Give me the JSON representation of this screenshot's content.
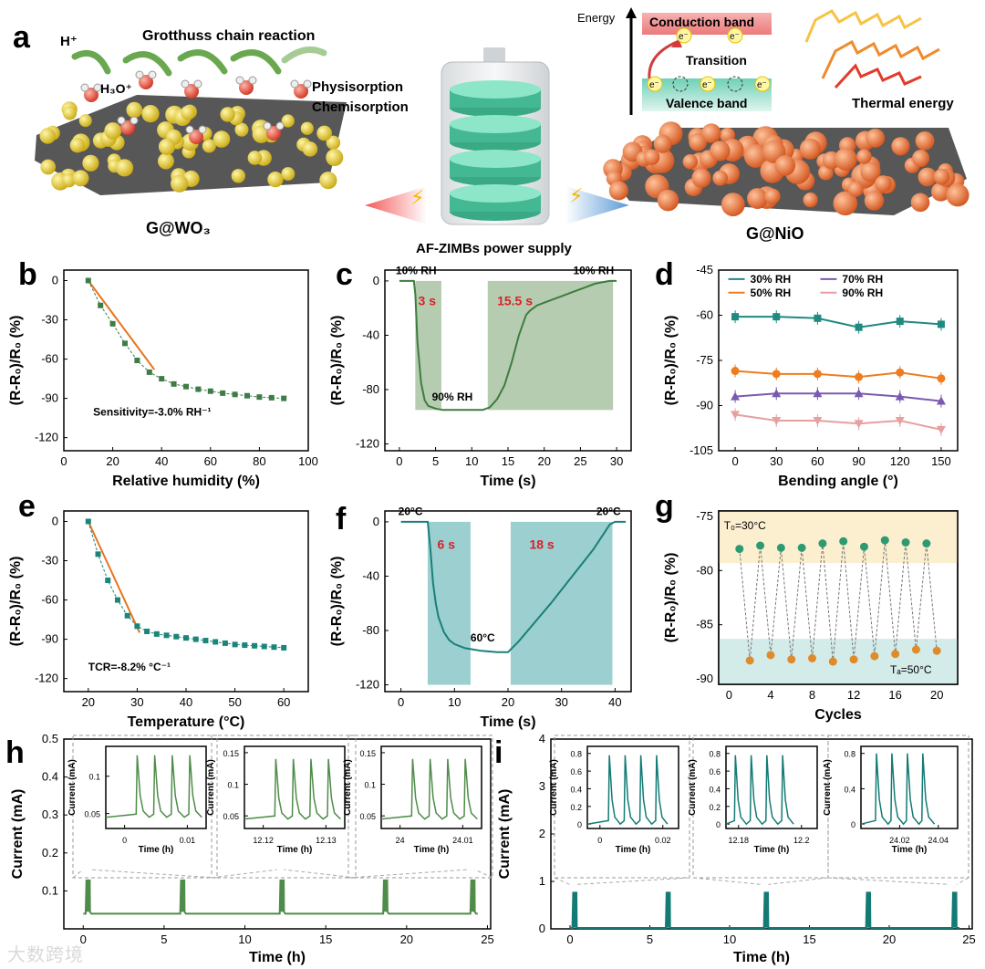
{
  "panel_letters": {
    "a": "a",
    "b": "b",
    "c": "c",
    "d": "d",
    "e": "e",
    "f": "f",
    "g": "g",
    "h": "h",
    "i": "i"
  },
  "panel_a": {
    "h_plus": "H⁺",
    "grotthuss": "Grotthuss chain reaction",
    "h3o": "H₃O⁺",
    "physisorption": "Physisorption",
    "chemisorption": "Chemisorption",
    "left_material": "G@WO₃",
    "right_material": "G@NiO",
    "power_supply": "AF-ZIMBs power supply",
    "energy": "Energy",
    "conduction_band": "Conduction band",
    "transition": "Transition",
    "valence_band": "Valence band",
    "thermal_energy": "Thermal energy",
    "electron": "e⁻",
    "colors": {
      "wo3": "#e3cf2e",
      "nio": "#e8743f",
      "battery": "#5fd3b0",
      "conduction": "#f08e8e",
      "valence": "#9ee0cf",
      "arrow_left": "#f25a5a",
      "arrow_right": "#5b9bd5"
    }
  },
  "watermark": "大数跨境",
  "chart_data": [
    {
      "id": "b",
      "type": "scatter",
      "xlabel": "Relative humidity (%)",
      "ylabel": "(R-R₀)/R₀ (%)",
      "xlim": [
        0,
        100
      ],
      "ylim": [
        -130,
        8
      ],
      "xticks": [
        0,
        20,
        40,
        60,
        80,
        100
      ],
      "yticks": [
        0,
        -30,
        -60,
        -90,
        -120
      ],
      "x": [
        10,
        15,
        20,
        25,
        30,
        35,
        40,
        45,
        50,
        55,
        60,
        65,
        70,
        75,
        80,
        85,
        90
      ],
      "y": [
        0,
        -19,
        -33,
        -48,
        -61,
        -70,
        -75,
        -79,
        -81,
        -83,
        -84.5,
        -86,
        -87,
        -88,
        -89,
        -89.5,
        -90
      ],
      "fit_line": {
        "x": [
          10,
          37
        ],
        "y": [
          0,
          -68
        ]
      },
      "annotation": "Sensitivity=-3.0% RH⁻¹",
      "color": "#3e7c47",
      "fit_color": "#e8741e"
    },
    {
      "id": "c",
      "type": "line",
      "xlabel": "Time (s)",
      "ylabel": "(R-R₀)/R₀ (%)",
      "xlim": [
        -2,
        32
      ],
      "ylim": [
        -125,
        8
      ],
      "xticks": [
        0,
        5,
        10,
        15,
        20,
        25,
        30
      ],
      "yticks": [
        0,
        -40,
        -80,
        -120
      ],
      "x": [
        0,
        1,
        2,
        2.2,
        2.5,
        3,
        3.5,
        4,
        5,
        6,
        8,
        10,
        11.5,
        12.5,
        13.5,
        14.5,
        15.5,
        16.5,
        17.5,
        18,
        19,
        20,
        22,
        24,
        26,
        27,
        28,
        29,
        30
      ],
      "y": [
        0,
        0,
        0,
        -10,
        -45,
        -75,
        -88,
        -92,
        -94,
        -95,
        -95,
        -95,
        -95,
        -93,
        -87,
        -77,
        -60,
        -40,
        -25,
        -22,
        -18,
        -16,
        -12,
        -8,
        -4,
        -2,
        -1,
        0,
        0
      ],
      "shade": [
        [
          2.2,
          5.8
        ],
        [
          12.2,
          29.5
        ]
      ],
      "shade_ylim": [
        -95,
        0
      ],
      "labels": {
        "start": "10% RH",
        "response": "3 s",
        "low": "90% RH",
        "recovery": "15.5 s",
        "end": "10% RH"
      },
      "color": "#3e7c3e",
      "shade_color": "#7aa26f"
    },
    {
      "id": "d",
      "type": "line",
      "xlabel": "Bending angle (°)",
      "ylabel": "(R-R₀)/R₀ (%)",
      "xlim": [
        -12,
        162
      ],
      "ylim": [
        -105,
        -45
      ],
      "xticks": [
        0,
        30,
        60,
        90,
        120,
        150
      ],
      "yticks": [
        -45,
        -60,
        -75,
        -90,
        -105
      ],
      "categories": [
        0,
        30,
        60,
        90,
        120,
        150
      ],
      "series": [
        {
          "name": "30% RH",
          "values": [
            -60.5,
            -60.5,
            -61,
            -64,
            -62,
            -63
          ],
          "color": "#1f8a80",
          "marker": "square"
        },
        {
          "name": "50% RH",
          "values": [
            -78.5,
            -79.5,
            -79.5,
            -80.5,
            -79,
            -81
          ],
          "color": "#ee7d20",
          "marker": "circle"
        },
        {
          "name": "70% RH",
          "values": [
            -87,
            -86,
            -86,
            -86,
            -87,
            -88.5
          ],
          "color": "#7a5ab0",
          "marker": "triangle"
        },
        {
          "name": "90% RH",
          "values": [
            -93,
            -95,
            -95,
            -96,
            -95,
            -98
          ],
          "color": "#e6a0a0",
          "marker": "tri-down"
        }
      ],
      "legend_position": "top"
    },
    {
      "id": "e",
      "type": "scatter",
      "xlabel": "Temperature (°C)",
      "ylabel": "(R-R₀)/R₀ (%)",
      "xlim": [
        15,
        65
      ],
      "ylim": [
        -130,
        8
      ],
      "xticks": [
        20,
        30,
        40,
        50,
        60
      ],
      "yticks": [
        0,
        -30,
        -60,
        -90,
        -120
      ],
      "x": [
        20,
        22,
        24,
        26,
        28,
        30,
        32,
        34,
        36,
        38,
        40,
        42,
        44,
        46,
        48,
        50,
        52,
        54,
        56,
        58,
        60
      ],
      "y": [
        0,
        -25,
        -45,
        -60,
        -72,
        -80,
        -84,
        -86,
        -87,
        -88,
        -89,
        -90,
        -91,
        -92,
        -93,
        -94,
        -94.5,
        -95,
        -95.5,
        -96,
        -96.5
      ],
      "fit_line": {
        "x": [
          20,
          30.5
        ],
        "y": [
          0,
          -85
        ]
      },
      "annotation": "TCR=-8.2% °C⁻¹",
      "color": "#1a857a",
      "fit_color": "#e8741e"
    },
    {
      "id": "f",
      "type": "line",
      "xlabel": "Time (s)",
      "ylabel": "(R-R₀)/R₀ (%)",
      "xlim": [
        -3,
        43
      ],
      "ylim": [
        -125,
        8
      ],
      "xticks": [
        0,
        10,
        20,
        30,
        40
      ],
      "yticks": [
        0,
        -40,
        -80,
        -120
      ],
      "x": [
        0,
        3,
        5,
        5.5,
        6,
        6.5,
        7,
        8,
        9,
        10,
        12,
        15,
        18,
        20,
        22,
        25,
        28,
        31,
        34,
        36,
        38,
        39,
        40,
        42
      ],
      "y": [
        0,
        0,
        0,
        -20,
        -45,
        -60,
        -70,
        -81,
        -87,
        -90,
        -93,
        -95,
        -96,
        -96,
        -88,
        -74,
        -60,
        -45,
        -30,
        -20,
        -8,
        -2,
        0,
        0
      ],
      "shade": [
        [
          5,
          13
        ],
        [
          20.5,
          39.5
        ]
      ],
      "shade_ylim": [
        -120,
        0
      ],
      "labels": {
        "start": "20°C",
        "response": "6 s",
        "high": "60°C",
        "recovery": "18 s",
        "end": "20°C"
      },
      "color": "#1a7f7a",
      "shade_color": "#4aa8a8"
    },
    {
      "id": "g",
      "type": "scatter",
      "xlabel": "Cycles",
      "ylabel": "(R-R₀)/R₀ (%)",
      "xlim": [
        -1,
        22
      ],
      "ylim": [
        -90.5,
        -74.5
      ],
      "xticks": [
        0,
        4,
        8,
        12,
        16,
        20
      ],
      "yticks": [
        -75,
        -80,
        -85,
        -90
      ],
      "x": [
        1,
        2,
        3,
        4,
        5,
        6,
        7,
        8,
        9,
        10,
        11,
        12,
        13,
        14,
        15,
        16,
        17,
        18,
        19,
        20
      ],
      "y": [
        -78.0,
        -88.3,
        -77.7,
        -87.8,
        -77.9,
        -88.2,
        -77.9,
        -88.1,
        -77.5,
        -88.4,
        -77.3,
        -88.2,
        -77.8,
        -87.9,
        -77.2,
        -87.7,
        -77.4,
        -87.3,
        -77.5,
        -87.4
      ],
      "band_low": {
        "range": [
          -90.5,
          -86.3
        ],
        "label": "Tₐ=50°C",
        "color": "#d3ebe9"
      },
      "band_high": {
        "range": [
          -79.3,
          -74.5
        ],
        "label": "T₀=30°C",
        "color": "#fbefcf"
      },
      "color_high": "#2d9a72",
      "color_low": "#e08b2b"
    },
    {
      "id": "h",
      "type": "line",
      "xlabel": "Time (h)",
      "ylabel": "Current (mA)",
      "xlim": [
        -1.2,
        25.2
      ],
      "ylim": [
        0,
        0.5
      ],
      "xticks": [
        0,
        5,
        10,
        15,
        20,
        25
      ],
      "yticks": [
        0.1,
        0.2,
        0.3,
        0.4,
        0.5
      ],
      "baseline": 0.04,
      "peak_times": [
        0.2,
        6.05,
        12.2,
        18.6,
        24.0
      ],
      "peak_height": 0.13,
      "color": "#4f8c4a",
      "insets": [
        {
          "xlabel": "Time (h)",
          "ylabel": "Current (mA)",
          "xticks": [
            0.0,
            0.01
          ],
          "xlim": [
            -0.003,
            0.013
          ],
          "yticks": [
            0.05,
            0.1
          ],
          "ylim": [
            0.03,
            0.14
          ],
          "peaks": [
            0.002,
            0.0048,
            0.0076,
            0.0104
          ],
          "base": 0.045,
          "peak": 0.128
        },
        {
          "xlabel": "Time (h)",
          "ylabel": "Current (mA)",
          "xticks": [
            12.12,
            12.13
          ],
          "xlim": [
            12.117,
            12.133
          ],
          "yticks": [
            0.05,
            0.1,
            0.15
          ],
          "ylim": [
            0.03,
            0.16
          ],
          "peaks": [
            12.122,
            12.1248,
            12.1276,
            12.1304
          ],
          "base": 0.045,
          "peak": 0.14
        },
        {
          "xlabel": "Time (h)",
          "ylabel": "Current (mA)",
          "xticks": [
            24.0,
            24.01
          ],
          "xlim": [
            23.997,
            24.013
          ],
          "yticks": [
            0.05,
            0.1,
            0.15
          ],
          "ylim": [
            0.03,
            0.16
          ],
          "peaks": [
            24.002,
            24.0048,
            24.0076,
            24.0104
          ],
          "base": 0.045,
          "peak": 0.14
        }
      ]
    },
    {
      "id": "i",
      "type": "line",
      "xlabel": "Time (h)",
      "ylabel": "Current (mA)",
      "xlim": [
        -1.2,
        25.2
      ],
      "ylim": [
        0,
        4
      ],
      "xticks": [
        0,
        5,
        10,
        15,
        20,
        25
      ],
      "yticks": [
        0,
        1,
        2,
        3,
        4
      ],
      "baseline": 0.02,
      "peak_times": [
        0.2,
        6.05,
        12.2,
        18.6,
        24.0
      ],
      "peak_height": 0.78,
      "color": "#137b74",
      "insets": [
        {
          "xlabel": "Time (h)",
          "ylabel": "Current (mA)",
          "xticks": [
            0.0,
            0.02
          ],
          "xlim": [
            -0.004,
            0.025
          ],
          "yticks": [
            0.0,
            0.2,
            0.4,
            0.6,
            0.8
          ],
          "ylim": [
            -0.05,
            0.88
          ],
          "peaks": [
            0.003,
            0.008,
            0.013,
            0.018
          ],
          "base": 0.0,
          "peak": 0.78
        },
        {
          "xlabel": "Time (h)",
          "ylabel": "Current (mA)",
          "xticks": [
            12.18,
            12.2
          ],
          "xlim": [
            12.176,
            12.205
          ],
          "yticks": [
            0.0,
            0.2,
            0.4,
            0.6,
            0.8
          ],
          "ylim": [
            -0.05,
            0.88
          ],
          "peaks": [
            12.179,
            12.184,
            12.189,
            12.194
          ],
          "base": 0.0,
          "peak": 0.78
        },
        {
          "xlabel": "Time (h)",
          "ylabel": "Current (mA)",
          "xticks": [
            24.02,
            24.04
          ],
          "xlim": [
            24.0,
            24.05
          ],
          "yticks": [
            0.0,
            0.4,
            0.8
          ],
          "ylim": [
            -0.05,
            0.88
          ],
          "peaks": [
            24.008,
            24.016,
            24.024,
            24.032
          ],
          "base": 0.0,
          "peak": 0.8
        }
      ]
    }
  ]
}
